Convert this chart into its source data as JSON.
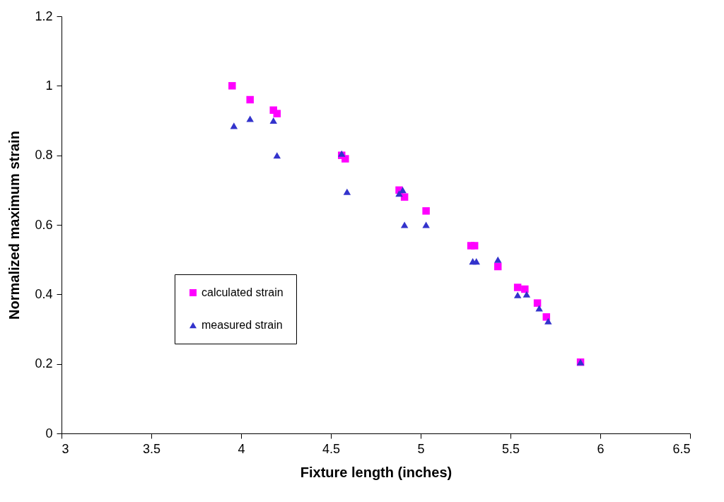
{
  "chart_data": {
    "type": "scatter",
    "xlabel": "Fixture length (inches)",
    "ylabel": "Normalized maximum strain",
    "xlim": [
      3,
      6.5
    ],
    "xticks": [
      3,
      3.5,
      4,
      4.5,
      5,
      5.5,
      6,
      6.5
    ],
    "ylim": [
      0,
      1.2
    ],
    "yticks": [
      0,
      0.2,
      0.4,
      0.6,
      0.8,
      1,
      1.2
    ],
    "grid": false,
    "legend": "left",
    "series": [
      {
        "name": "calculated strain",
        "color": "#ff00ff",
        "marker": "square",
        "x": [
          3.95,
          4.05,
          4.18,
          4.2,
          4.56,
          4.58,
          4.88,
          4.91,
          5.03,
          5.28,
          5.3,
          5.43,
          5.54,
          5.58,
          5.65,
          5.7,
          5.89
        ],
        "values": [
          1.0,
          0.96,
          0.93,
          0.92,
          0.8,
          0.79,
          0.7,
          0.68,
          0.64,
          0.54,
          0.54,
          0.48,
          0.42,
          0.415,
          0.375,
          0.335,
          0.205
        ]
      },
      {
        "name": "measured strain",
        "color": "#3333cc",
        "marker": "triangle",
        "x": [
          3.96,
          4.05,
          4.18,
          4.2,
          4.56,
          4.59,
          4.88,
          4.9,
          4.91,
          5.03,
          5.29,
          5.31,
          5.43,
          5.54,
          5.59,
          5.66,
          5.71,
          5.89
        ],
        "values": [
          0.885,
          0.905,
          0.9,
          0.8,
          0.805,
          0.695,
          0.69,
          0.7,
          0.6,
          0.6,
          0.495,
          0.495,
          0.5,
          0.398,
          0.4,
          0.36,
          0.323,
          0.205
        ]
      }
    ]
  }
}
